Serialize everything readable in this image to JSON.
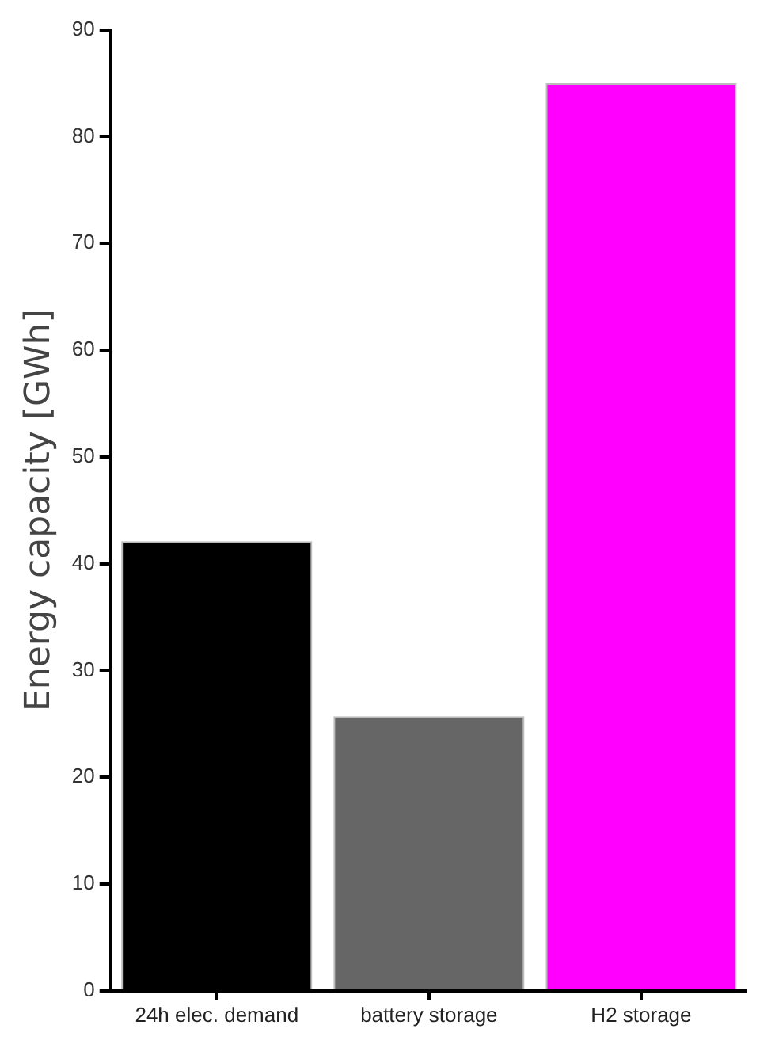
{
  "chart_data": {
    "type": "bar",
    "ylabel": "Energy capacity [GWh]",
    "categories": [
      "24h elec. demand",
      "battery storage",
      "H2 storage"
    ],
    "values": [
      42.1,
      25.7,
      85
    ],
    "colors": [
      "#000000",
      "#666666",
      "#ff00ff"
    ],
    "ylim": [
      0,
      90
    ],
    "yticks": [
      0,
      10,
      20,
      30,
      40,
      50,
      60,
      70,
      80,
      90
    ],
    "grid": false,
    "legend": false
  }
}
